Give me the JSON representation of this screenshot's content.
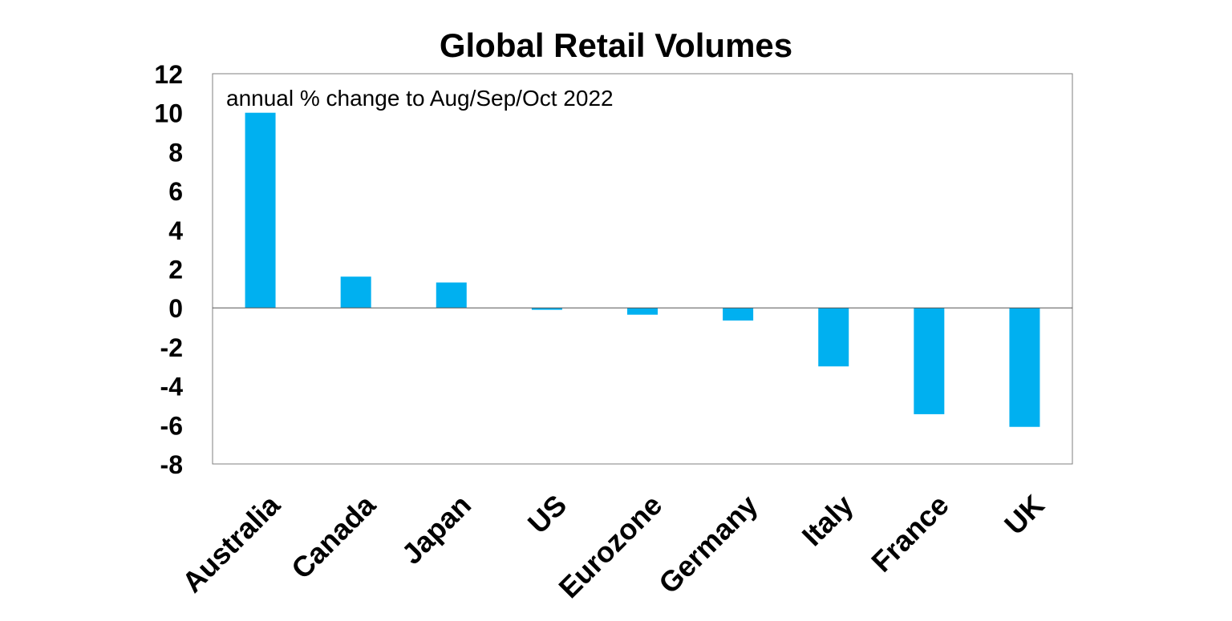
{
  "chart_data": {
    "type": "bar",
    "title": "Global Retail Volumes",
    "subtitle": "annual % change to Aug/Sep/Oct 2022",
    "categories": [
      "Australia",
      "Canada",
      "Japan",
      "US",
      "Eurozone",
      "Germany",
      "Italy",
      "France",
      "UK"
    ],
    "values": [
      10.0,
      1.6,
      1.3,
      -0.1,
      -0.35,
      -0.65,
      -3.0,
      -5.45,
      -6.1
    ],
    "ylim": [
      -8,
      12
    ],
    "yticks": [
      12,
      10,
      8,
      6,
      4,
      2,
      0,
      -2,
      -4,
      -6,
      -8
    ],
    "xlabel": "",
    "ylabel": "",
    "grid": false,
    "bar_color": "#00B0F0"
  }
}
